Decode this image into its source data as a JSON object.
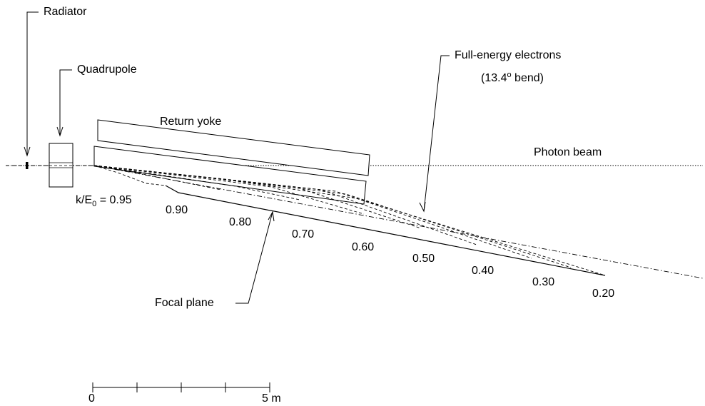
{
  "labels": {
    "radiator": "Radiator",
    "quadrupole": "Quadrupole",
    "return_yoke": "Return yoke",
    "photon_beam": "Photon beam",
    "full_energy_line1": "Full-energy electrons",
    "full_energy_open": "(13.4",
    "full_energy_degree": "o",
    "full_energy_close": " bend)",
    "focal_plane": "Focal plane"
  },
  "ratio_label": {
    "prefix": "k/E",
    "subscript": "0",
    "suffix": " = 0.95"
  },
  "energy_ratios": [
    "0.90",
    "0.80",
    "0.70",
    "0.60",
    "0.50",
    "0.40",
    "0.30",
    "0.20"
  ],
  "scale_bar": {
    "start_label": "0",
    "end_label": "5 m"
  }
}
